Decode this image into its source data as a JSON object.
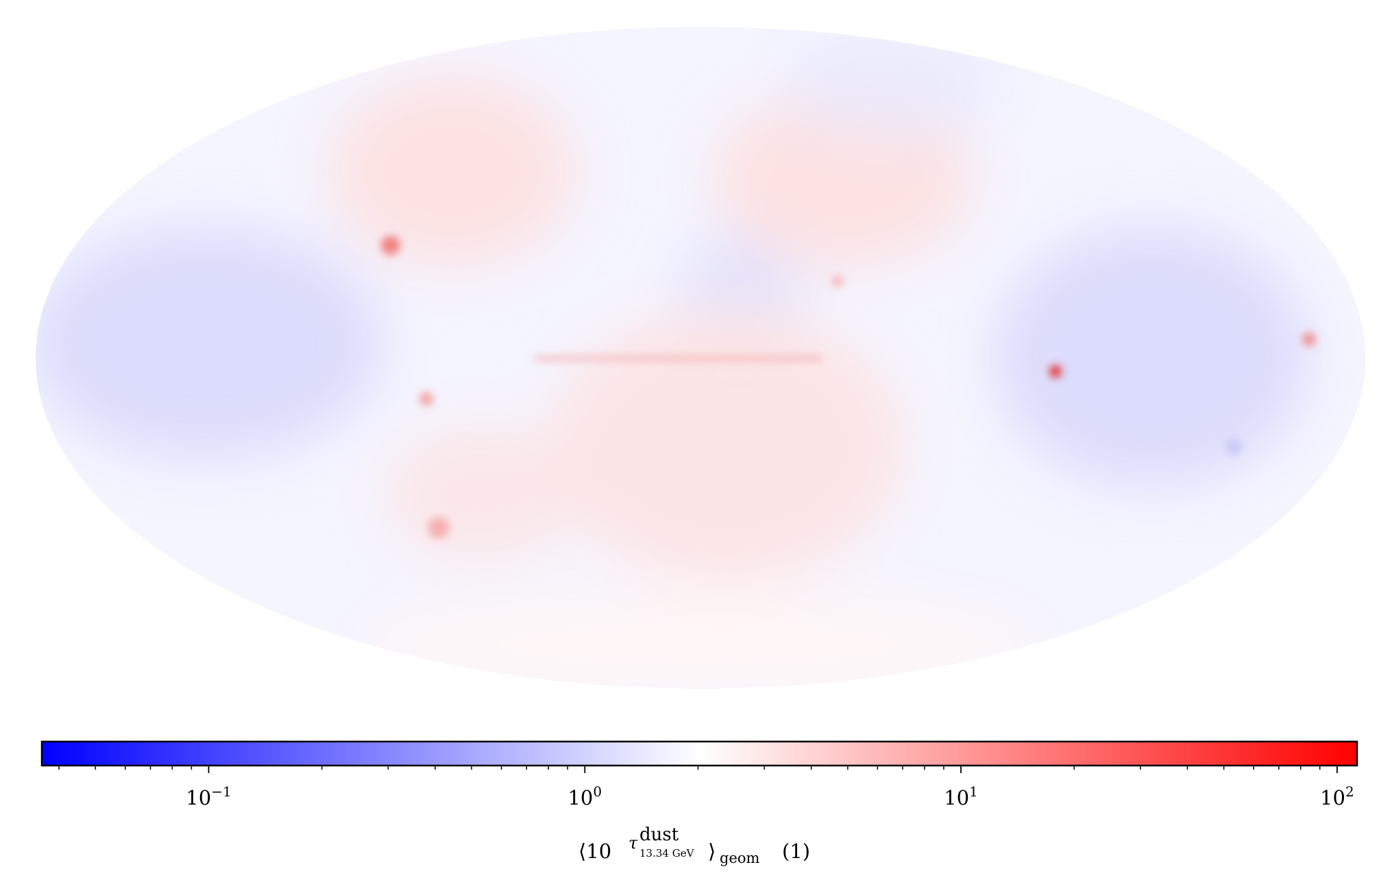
{
  "chart_data": {
    "type": "map",
    "colorbar": {
      "scale": "log",
      "xlim": [
        0.036,
        113
      ],
      "colors": [
        "#0000ff",
        "#ffffff",
        "#ff0000"
      ],
      "xticks": [
        {
          "value": 0.1,
          "label": "10",
          "exponent": "−1"
        },
        {
          "value": 1,
          "label": "10",
          "exponent": "0"
        },
        {
          "value": 10,
          "label": "10",
          "exponent": "1"
        },
        {
          "value": 100,
          "label": "10",
          "exponent": "2"
        }
      ],
      "minor_xticks": [
        0.04,
        0.05,
        0.06,
        0.07,
        0.08,
        0.09,
        0.2,
        0.3,
        0.4,
        0.5,
        0.6,
        0.7,
        0.8,
        0.9,
        2,
        3,
        4,
        5,
        6,
        7,
        8,
        9,
        20,
        30,
        40,
        50,
        60,
        70,
        80,
        90
      ],
      "label": {
        "base": "⟨10",
        "exponent": "τ",
        "exponent_superscript": "dust",
        "exponent_subscript": "13.34 GeV",
        "close": "⟩",
        "subscript": "geom",
        "unit": "(1)"
      }
    }
  }
}
